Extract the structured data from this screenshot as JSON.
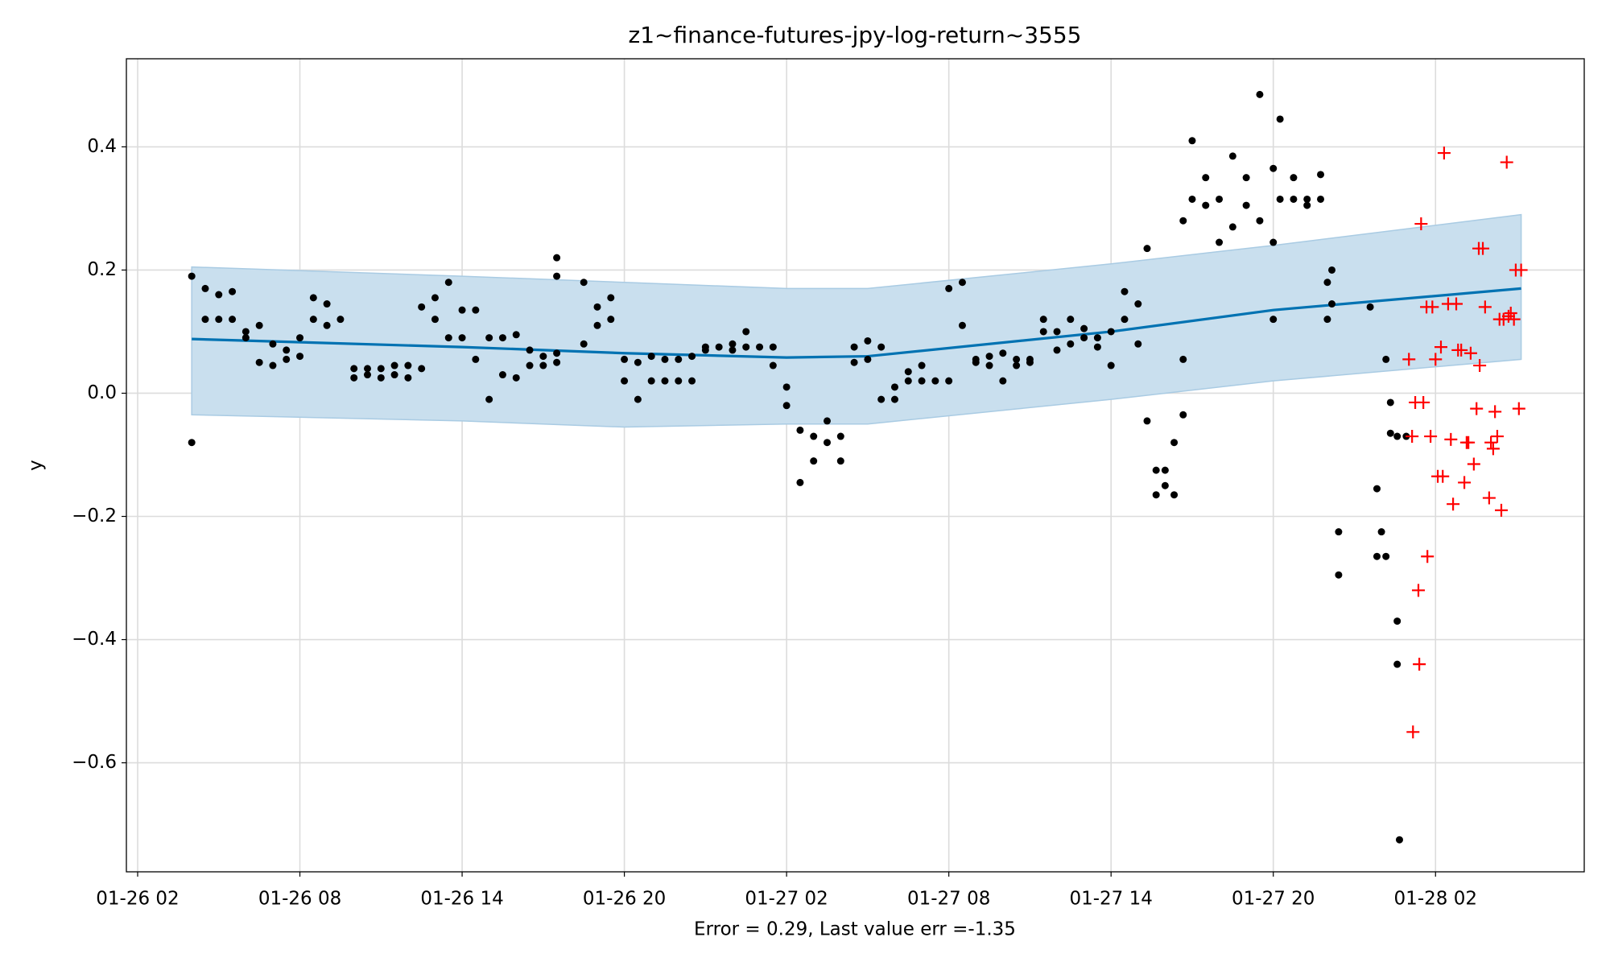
{
  "chart_data": {
    "type": "line",
    "title": "z1~finance-futures-jpy-log-return~3555",
    "xlabel": "Error = 0.29, Last value err =-1.35",
    "ylabel": "y",
    "x": [
      "01-26 04:00",
      "01-26 14:00",
      "01-26 20:00",
      "01-27 02:00",
      "01-27 05:00",
      "01-27 14:00",
      "01-27 20:00",
      "01-28 05:10"
    ],
    "series": [
      {
        "color": "#0072b2",
        "values": [
          0.088,
          0.075,
          0.065,
          0.058,
          0.06,
          0.1,
          0.135,
          0.17
        ]
      }
    ],
    "band": {
      "color": "#c9dfee",
      "edge": "#a9cbe3",
      "upper": [
        0.205,
        0.19,
        0.18,
        0.17,
        0.17,
        0.21,
        0.24,
        0.29
      ],
      "lower": [
        -0.035,
        -0.045,
        -0.055,
        -0.05,
        -0.05,
        -0.01,
        0.02,
        0.055
      ]
    },
    "points": [
      {
        "color": "#000000",
        "marker": "dot",
        "x": [
          "01-26 04:00",
          "01-26 04:00",
          "01-26 04:30",
          "01-26 04:30",
          "01-26 05:00",
          "01-26 05:00",
          "01-26 05:30",
          "01-26 05:30",
          "01-26 06:00",
          "01-26 06:00",
          "01-26 06:30",
          "01-26 06:30",
          "01-26 07:00",
          "01-26 07:00",
          "01-26 07:30",
          "01-26 07:30",
          "01-26 08:00",
          "01-26 08:00",
          "01-26 08:30",
          "01-26 08:30",
          "01-26 09:00",
          "01-26 09:00",
          "01-26 09:30",
          "01-26 10:00",
          "01-26 10:00",
          "01-26 10:30",
          "01-26 10:30",
          "01-26 11:00",
          "01-26 11:00",
          "01-26 11:30",
          "01-26 11:30",
          "01-26 12:00",
          "01-26 12:00",
          "01-26 12:30",
          "01-26 12:30",
          "01-26 13:00",
          "01-26 13:00",
          "01-26 13:30",
          "01-26 13:30",
          "01-26 14:00",
          "01-26 14:00",
          "01-26 14:30",
          "01-26 14:30",
          "01-26 15:00",
          "01-26 15:00",
          "01-26 15:30",
          "01-26 15:30",
          "01-26 16:00",
          "01-26 16:00",
          "01-26 16:30",
          "01-26 16:30",
          "01-26 17:00",
          "01-26 17:00",
          "01-26 17:30",
          "01-26 17:30",
          "01-26 17:30",
          "01-26 17:30",
          "01-26 18:30",
          "01-26 18:30",
          "01-26 19:00",
          "01-26 19:00",
          "01-26 19:30",
          "01-26 19:30",
          "01-26 20:00",
          "01-26 20:00",
          "01-26 20:30",
          "01-26 20:30",
          "01-26 21:00",
          "01-26 21:00",
          "01-26 21:30",
          "01-26 21:30",
          "01-26 22:00",
          "01-26 22:00",
          "01-26 22:30",
          "01-26 22:30",
          "01-26 23:00",
          "01-26 23:00",
          "01-26 23:30",
          "01-27 00:00",
          "01-27 00:00",
          "01-27 00:30",
          "01-27 00:30",
          "01-27 01:00",
          "01-27 01:30",
          "01-27 01:30",
          "01-27 02:00",
          "01-27 02:00",
          "01-27 02:30",
          "01-27 02:30",
          "01-27 03:00",
          "01-27 03:00",
          "01-27 03:30",
          "01-27 03:30",
          "01-27 04:00",
          "01-27 04:00",
          "01-27 04:30",
          "01-27 04:30",
          "01-27 05:00",
          "01-27 05:00",
          "01-27 05:30",
          "01-27 05:30",
          "01-27 06:00",
          "01-27 06:00",
          "01-27 06:30",
          "01-27 06:30",
          "01-27 07:00",
          "01-27 07:00",
          "01-27 07:30",
          "01-27 08:00",
          "01-27 08:00",
          "01-27 08:30",
          "01-27 08:30",
          "01-27 09:00",
          "01-27 09:00",
          "01-27 09:30",
          "01-27 09:30",
          "01-27 10:00",
          "01-27 10:00",
          "01-27 10:30",
          "01-27 10:30",
          "01-27 11:00",
          "01-27 11:00",
          "01-27 11:30",
          "01-27 11:30",
          "01-27 12:00",
          "01-27 12:00",
          "01-27 12:30",
          "01-27 12:30",
          "01-27 13:00",
          "01-27 13:00",
          "01-27 13:30",
          "01-27 13:30",
          "01-27 14:00",
          "01-27 14:00",
          "01-27 14:30",
          "01-27 14:30",
          "01-27 15:00",
          "01-27 15:00",
          "01-27 15:20",
          "01-27 15:20",
          "01-27 15:40",
          "01-27 15:40",
          "01-27 16:00",
          "01-27 16:00",
          "01-27 16:20",
          "01-27 16:20",
          "01-27 16:40",
          "01-27 16:40",
          "01-27 16:40",
          "01-27 17:00",
          "01-27 17:00",
          "01-27 17:30",
          "01-27 17:30",
          "01-27 18:00",
          "01-27 18:00",
          "01-27 18:30",
          "01-27 18:30",
          "01-27 19:00",
          "01-27 19:00",
          "01-27 19:30",
          "01-27 19:30",
          "01-27 20:00",
          "01-27 20:00",
          "01-27 20:00",
          "01-27 20:15",
          "01-27 20:15",
          "01-27 20:45",
          "01-27 20:45",
          "01-27 21:15",
          "01-27 21:15",
          "01-27 21:45",
          "01-27 21:45",
          "01-27 22:00",
          "01-27 22:00",
          "01-27 22:10",
          "01-27 22:10",
          "01-27 22:25",
          "01-27 22:25",
          "01-27 23:35",
          "01-27 23:50",
          "01-27 23:50",
          "01-28 00:00",
          "01-28 00:10",
          "01-28 00:10",
          "01-28 00:20",
          "01-28 00:20",
          "01-28 00:35",
          "01-28 00:35",
          "01-28 00:35",
          "01-28 00:40",
          "01-28 00:55"
        ],
        "y": [
          -0.08,
          0.19,
          0.17,
          0.12,
          0.16,
          0.12,
          0.12,
          0.165,
          0.1,
          0.09,
          0.11,
          0.05,
          0.08,
          0.045,
          0.055,
          0.07,
          0.09,
          0.06,
          0.155,
          0.12,
          0.145,
          0.11,
          0.12,
          0.04,
          0.025,
          0.04,
          0.03,
          0.04,
          0.025,
          0.045,
          0.03,
          0.045,
          0.025,
          0.14,
          0.04,
          0.155,
          0.12,
          0.18,
          0.09,
          0.135,
          0.09,
          0.135,
          0.055,
          0.09,
          -0.01,
          0.09,
          0.03,
          0.095,
          0.025,
          0.045,
          0.07,
          0.06,
          0.045,
          0.065,
          0.05,
          0.19,
          0.22,
          0.08,
          0.18,
          0.14,
          0.11,
          0.155,
          0.12,
          0.02,
          0.055,
          -0.01,
          0.05,
          0.06,
          0.02,
          0.055,
          0.02,
          0.02,
          0.055,
          0.02,
          0.06,
          0.075,
          0.07,
          0.075,
          0.08,
          0.07,
          0.1,
          0.075,
          0.075,
          0.045,
          0.075,
          -0.02,
          0.01,
          -0.06,
          -0.145,
          -0.07,
          -0.11,
          -0.045,
          -0.08,
          -0.07,
          -0.11,
          0.075,
          0.05,
          0.085,
          0.055,
          0.075,
          -0.01,
          0.01,
          -0.01,
          0.02,
          0.035,
          0.045,
          0.02,
          0.02,
          0.02,
          0.17,
          0.18,
          0.11,
          0.05,
          0.055,
          0.06,
          0.045,
          0.065,
          0.02,
          0.055,
          0.045,
          0.05,
          0.055,
          0.1,
          0.12,
          0.1,
          0.07,
          0.12,
          0.08,
          0.105,
          0.09,
          0.09,
          0.075,
          0.045,
          0.1,
          0.165,
          0.12,
          0.145,
          0.08,
          0.235,
          -0.045,
          -0.125,
          -0.165,
          -0.15,
          -0.125,
          -0.08,
          -0.165,
          -0.035,
          0.055,
          0.28,
          0.41,
          0.315,
          0.35,
          0.305,
          0.315,
          0.245,
          0.27,
          0.385,
          0.35,
          0.305,
          0.485,
          0.28,
          0.365,
          0.245,
          0.12,
          0.445,
          0.315,
          0.315,
          0.35,
          0.305,
          0.315,
          0.355,
          0.315,
          0.12,
          0.18,
          0.2,
          0.145,
          -0.295,
          -0.225,
          0.14,
          -0.155,
          -0.265,
          -0.225,
          0.055,
          -0.265,
          -0.015,
          -0.065,
          -0.37,
          -0.44,
          -0.07,
          -0.725,
          -0.07
        ]
      },
      {
        "color": "#ff0000",
        "marker": "plus",
        "x": [
          "01-28 01:01",
          "01-28 01:08",
          "01-28 01:10",
          "01-28 01:15",
          "01-28 01:22",
          "01-28 01:24",
          "01-28 01:28",
          "01-28 01:33",
          "01-28 01:40",
          "01-28 01:42",
          "01-28 01:49",
          "01-28 01:53",
          "01-28 02:00",
          "01-28 02:05",
          "01-28 02:12",
          "01-28 02:16",
          "01-28 02:19",
          "01-28 02:28",
          "01-28 02:34",
          "01-28 02:39",
          "01-28 02:46",
          "01-28 02:50",
          "01-28 02:57",
          "01-28 03:04",
          "01-28 03:09",
          "01-28 03:13",
          "01-28 03:18",
          "01-28 03:25",
          "01-28 03:31",
          "01-28 03:36",
          "01-28 03:38",
          "01-28 03:45",
          "01-28 03:50",
          "01-28 03:59",
          "01-28 04:03",
          "01-28 04:08",
          "01-28 04:12",
          "01-28 04:17",
          "01-28 04:22",
          "01-28 04:26",
          "01-28 04:31",
          "01-28 04:38",
          "01-28 04:42",
          "01-28 04:47",
          "01-28 04:54",
          "01-28 04:58",
          "01-28 05:05",
          "01-28 05:10"
        ],
        "y": [
          0.055,
          -0.07,
          -0.55,
          -0.015,
          -0.32,
          -0.44,
          0.275,
          -0.015,
          0.14,
          -0.265,
          -0.07,
          0.14,
          0.055,
          -0.135,
          0.075,
          -0.135,
          0.39,
          0.145,
          -0.075,
          -0.18,
          0.145,
          0.07,
          0.07,
          -0.145,
          -0.08,
          -0.08,
          0.065,
          -0.115,
          -0.025,
          0.235,
          0.045,
          0.235,
          0.14,
          -0.17,
          -0.08,
          -0.09,
          -0.03,
          -0.07,
          0.12,
          -0.19,
          0.12,
          0.375,
          0.125,
          0.13,
          0.12,
          0.2,
          -0.025,
          0.2
        ]
      }
    ],
    "xlim": [
      "01-26 01:35",
      "01-28 07:30"
    ],
    "xticks": [
      "01-26 02",
      "01-26 08",
      "01-26 14",
      "01-26 20",
      "01-27 02",
      "01-27 08",
      "01-27 14",
      "01-27 20",
      "01-28 02"
    ],
    "ylim": [
      -0.777,
      0.543
    ],
    "yticks": [
      {
        "value": -0.6,
        "label": "−0.6"
      },
      {
        "value": -0.4,
        "label": "−0.4"
      },
      {
        "value": -0.2,
        "label": "−0.2"
      },
      {
        "value": 0,
        "label": "0.0"
      },
      0.2,
      0.4
    ],
    "grid": true
  }
}
